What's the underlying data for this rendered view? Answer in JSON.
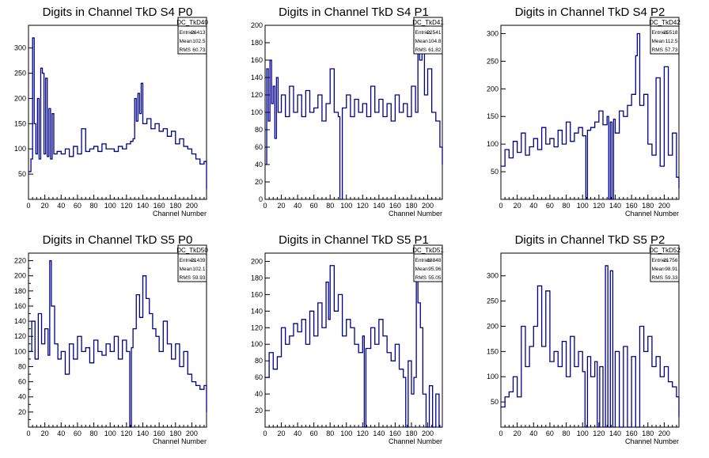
{
  "line_color": "#00008b",
  "chart_data": [
    {
      "type": "line",
      "title": "Digits in Channel TkD S4 P0",
      "xlabel": "Channel Number",
      "ylabel": "",
      "xlim": [
        0,
        218
      ],
      "ylim": [
        0,
        345
      ],
      "xticks": [
        0,
        20,
        40,
        60,
        80,
        100,
        120,
        140,
        160,
        180,
        200
      ],
      "yticks": [
        50,
        100,
        150,
        200,
        250,
        300
      ],
      "stats": {
        "name": "DC_TkD40",
        "rows": [
          [
            "Entries",
            "26413"
          ],
          [
            "Mean",
            "102.5"
          ],
          [
            "RMS",
            "60.73"
          ]
        ]
      },
      "series": [
        {
          "x": [
            0,
            3,
            5,
            7,
            9,
            11,
            13,
            15,
            17,
            19,
            21,
            23,
            25,
            27,
            29,
            31,
            35,
            40,
            45,
            50,
            55,
            60,
            65,
            70,
            75,
            80,
            85,
            90,
            95,
            100,
            105,
            110,
            115,
            120,
            125,
            128,
            130,
            132,
            134,
            136,
            138,
            140,
            145,
            150,
            155,
            160,
            165,
            170,
            175,
            180,
            185,
            190,
            195,
            200,
            205,
            210,
            215,
            218
          ],
          "y": [
            55,
            80,
            320,
            150,
            90,
            200,
            80,
            260,
            250,
            90,
            240,
            85,
            180,
            80,
            170,
            90,
            95,
            90,
            100,
            85,
            105,
            90,
            140,
            95,
            100,
            105,
            95,
            110,
            100,
            100,
            95,
            105,
            100,
            110,
            115,
            120,
            200,
            155,
            210,
            170,
            230,
            150,
            160,
            140,
            150,
            135,
            140,
            125,
            135,
            110,
            120,
            105,
            100,
            90,
            80,
            70,
            75,
            20
          ]
        }
      ]
    },
    {
      "type": "line",
      "title": "Digits in Channel TkD S4 P1",
      "xlabel": "Channel Number",
      "ylabel": "",
      "xlim": [
        0,
        218
      ],
      "ylim": [
        0,
        200
      ],
      "xticks": [
        0,
        20,
        40,
        60,
        80,
        100,
        120,
        140,
        160,
        180,
        200
      ],
      "yticks": [
        0,
        20,
        40,
        60,
        80,
        100,
        120,
        140,
        160,
        180,
        200
      ],
      "stats": {
        "name": "DC_TkD41",
        "rows": [
          [
            "Entries",
            "22541"
          ],
          [
            "Mean",
            "104.8"
          ],
          [
            "RMS",
            "61.82"
          ]
        ]
      },
      "series": [
        {
          "x": [
            0,
            2,
            4,
            6,
            8,
            10,
            12,
            14,
            16,
            20,
            25,
            30,
            35,
            40,
            45,
            50,
            55,
            60,
            65,
            70,
            75,
            80,
            85,
            90,
            92,
            95,
            100,
            105,
            110,
            115,
            120,
            125,
            130,
            135,
            140,
            145,
            150,
            155,
            160,
            165,
            170,
            175,
            180,
            185,
            188,
            190,
            193,
            196,
            200,
            205,
            210,
            215,
            218
          ],
          "y": [
            40,
            150,
            90,
            160,
            110,
            130,
            70,
            140,
            100,
            120,
            95,
            130,
            100,
            120,
            95,
            125,
            100,
            105,
            120,
            90,
            110,
            150,
            100,
            95,
            0,
            105,
            120,
            95,
            115,
            100,
            110,
            95,
            130,
            100,
            115,
            95,
            110,
            90,
            120,
            100,
            110,
            95,
            130,
            100,
            190,
            160,
            180,
            120,
            150,
            100,
            90,
            60,
            40
          ]
        }
      ]
    },
    {
      "type": "line",
      "title": "Digits in Channel TkD S4 P2",
      "xlabel": "Channel Number",
      "ylabel": "",
      "xlim": [
        0,
        218
      ],
      "ylim": [
        0,
        315
      ],
      "xticks": [
        0,
        20,
        40,
        60,
        80,
        100,
        120,
        140,
        160,
        180,
        200
      ],
      "yticks": [
        50,
        100,
        150,
        200,
        250,
        300
      ],
      "stats": {
        "name": "DC_TkD42",
        "rows": [
          [
            "Entries",
            "25518"
          ],
          [
            "Mean",
            "112.5"
          ],
          [
            "RMS",
            "57.73"
          ]
        ]
      },
      "series": [
        {
          "x": [
            0,
            5,
            10,
            15,
            20,
            25,
            30,
            35,
            40,
            45,
            50,
            55,
            60,
            65,
            70,
            75,
            80,
            85,
            90,
            95,
            100,
            104,
            106,
            110,
            115,
            120,
            125,
            130,
            132,
            134,
            136,
            138,
            140,
            145,
            150,
            155,
            160,
            165,
            167,
            170,
            175,
            180,
            185,
            190,
            195,
            200,
            205,
            210,
            215,
            218
          ],
          "y": [
            60,
            90,
            75,
            105,
            85,
            120,
            80,
            95,
            110,
            90,
            130,
            100,
            110,
            95,
            125,
            100,
            140,
            105,
            120,
            130,
            115,
            0,
            125,
            130,
            140,
            160,
            135,
            150,
            0,
            140,
            0,
            145,
            120,
            160,
            150,
            170,
            190,
            260,
            300,
            170,
            190,
            100,
            80,
            220,
            60,
            240,
            80,
            120,
            40,
            20
          ]
        }
      ]
    },
    {
      "type": "line",
      "title": "Digits in Channel TkD S5 P0",
      "xlabel": "Channel Number",
      "ylabel": "",
      "xlim": [
        0,
        218
      ],
      "ylim": [
        0,
        230
      ],
      "xticks": [
        0,
        20,
        40,
        60,
        80,
        100,
        120,
        140,
        160,
        180,
        200
      ],
      "yticks": [
        0,
        10,
        20,
        30,
        40,
        50,
        60,
        70,
        80,
        90,
        100,
        110,
        120,
        130,
        140,
        150,
        160,
        170,
        180,
        190,
        200,
        210,
        220
      ],
      "yticks_labels": [
        "",
        "",
        "20",
        "",
        "40",
        "",
        "60",
        "",
        "80",
        "",
        "100",
        "",
        "120",
        "",
        "140",
        "",
        "160",
        "",
        "180",
        "",
        "200",
        "",
        "220"
      ],
      "stats": {
        "name": "DC_TkD50",
        "rows": [
          [
            "Entries",
            "21439"
          ],
          [
            "Mean",
            "102.1"
          ],
          [
            "RMS",
            "59.93"
          ]
        ]
      },
      "series": [
        {
          "x": [
            0,
            4,
            8,
            12,
            16,
            20,
            24,
            26,
            28,
            32,
            36,
            40,
            45,
            50,
            55,
            60,
            65,
            70,
            75,
            80,
            85,
            90,
            95,
            100,
            105,
            110,
            115,
            120,
            124,
            126,
            128,
            132,
            136,
            140,
            144,
            148,
            152,
            156,
            160,
            165,
            170,
            175,
            180,
            185,
            190,
            195,
            200,
            205,
            210,
            215,
            218
          ],
          "y": [
            100,
            140,
            90,
            150,
            110,
            130,
            95,
            220,
            160,
            110,
            90,
            100,
            70,
            110,
            90,
            120,
            100,
            105,
            85,
            115,
            100,
            95,
            110,
            100,
            120,
            90,
            115,
            100,
            0,
            105,
            130,
            175,
            145,
            200,
            170,
            150,
            130,
            120,
            100,
            140,
            110,
            90,
            110,
            80,
            100,
            70,
            60,
            55,
            50,
            55,
            20
          ]
        }
      ]
    },
    {
      "type": "line",
      "title": "Digits in Channel TkD S5 P1",
      "xlabel": "Channel Number",
      "ylabel": "",
      "xlim": [
        0,
        218
      ],
      "ylim": [
        0,
        210
      ],
      "xticks": [
        0,
        20,
        40,
        60,
        80,
        100,
        120,
        140,
        160,
        180,
        200
      ],
      "yticks": [
        20,
        40,
        60,
        80,
        100,
        120,
        140,
        160,
        180,
        200
      ],
      "stats": {
        "name": "DC_TkD51",
        "rows": [
          [
            "Entries",
            "18848"
          ],
          [
            "Mean",
            "95.96"
          ],
          [
            "RMS",
            "55.05"
          ]
        ]
      },
      "series": [
        {
          "x": [
            0,
            5,
            10,
            15,
            20,
            25,
            30,
            35,
            40,
            45,
            50,
            55,
            60,
            65,
            70,
            75,
            78,
            80,
            85,
            90,
            95,
            100,
            105,
            110,
            115,
            120,
            122,
            124,
            130,
            135,
            140,
            145,
            150,
            155,
            160,
            165,
            170,
            173,
            176,
            180,
            183,
            186,
            188,
            191,
            194,
            198,
            202,
            206,
            210,
            214,
            218
          ],
          "y": [
            60,
            90,
            70,
            85,
            120,
            100,
            110,
            125,
            115,
            130,
            100,
            140,
            110,
            150,
            120,
            175,
            130,
            195,
            140,
            160,
            110,
            130,
            120,
            100,
            90,
            110,
            0,
            95,
            120,
            100,
            130,
            110,
            90,
            80,
            100,
            70,
            60,
            0,
            80,
            40,
            60,
            190,
            150,
            120,
            40,
            0,
            50,
            0,
            40,
            0,
            0
          ]
        }
      ]
    },
    {
      "type": "line",
      "title": "Digits in Channel TkD S5 P2",
      "xlabel": "Channel Number",
      "ylabel": "",
      "xlim": [
        0,
        218
      ],
      "ylim": [
        0,
        345
      ],
      "xticks": [
        0,
        20,
        40,
        60,
        80,
        100,
        120,
        140,
        160,
        180,
        200
      ],
      "yticks": [
        50,
        100,
        150,
        200,
        250,
        300
      ],
      "stats": {
        "name": "DC_TkD52",
        "rows": [
          [
            "Entries",
            "21756"
          ],
          [
            "Mean",
            "98.91"
          ],
          [
            "RMS",
            "59.33"
          ]
        ]
      },
      "series": [
        {
          "x": [
            0,
            5,
            10,
            15,
            20,
            25,
            30,
            35,
            40,
            45,
            50,
            55,
            60,
            65,
            70,
            75,
            80,
            85,
            90,
            95,
            100,
            103,
            106,
            110,
            115,
            118,
            121,
            125,
            128,
            131,
            134,
            137,
            140,
            145,
            150,
            155,
            160,
            165,
            170,
            175,
            180,
            185,
            190,
            195,
            200,
            205,
            210,
            215,
            218
          ],
          "y": [
            40,
            60,
            70,
            100,
            60,
            200,
            120,
            160,
            200,
            280,
            160,
            270,
            130,
            150,
            120,
            170,
            100,
            180,
            120,
            150,
            110,
            0,
            140,
            100,
            130,
            0,
            120,
            0,
            320,
            0,
            310,
            0,
            150,
            0,
            160,
            0,
            140,
            0,
            200,
            150,
            180,
            120,
            140,
            100,
            120,
            90,
            80,
            60,
            20
          ]
        }
      ]
    }
  ]
}
